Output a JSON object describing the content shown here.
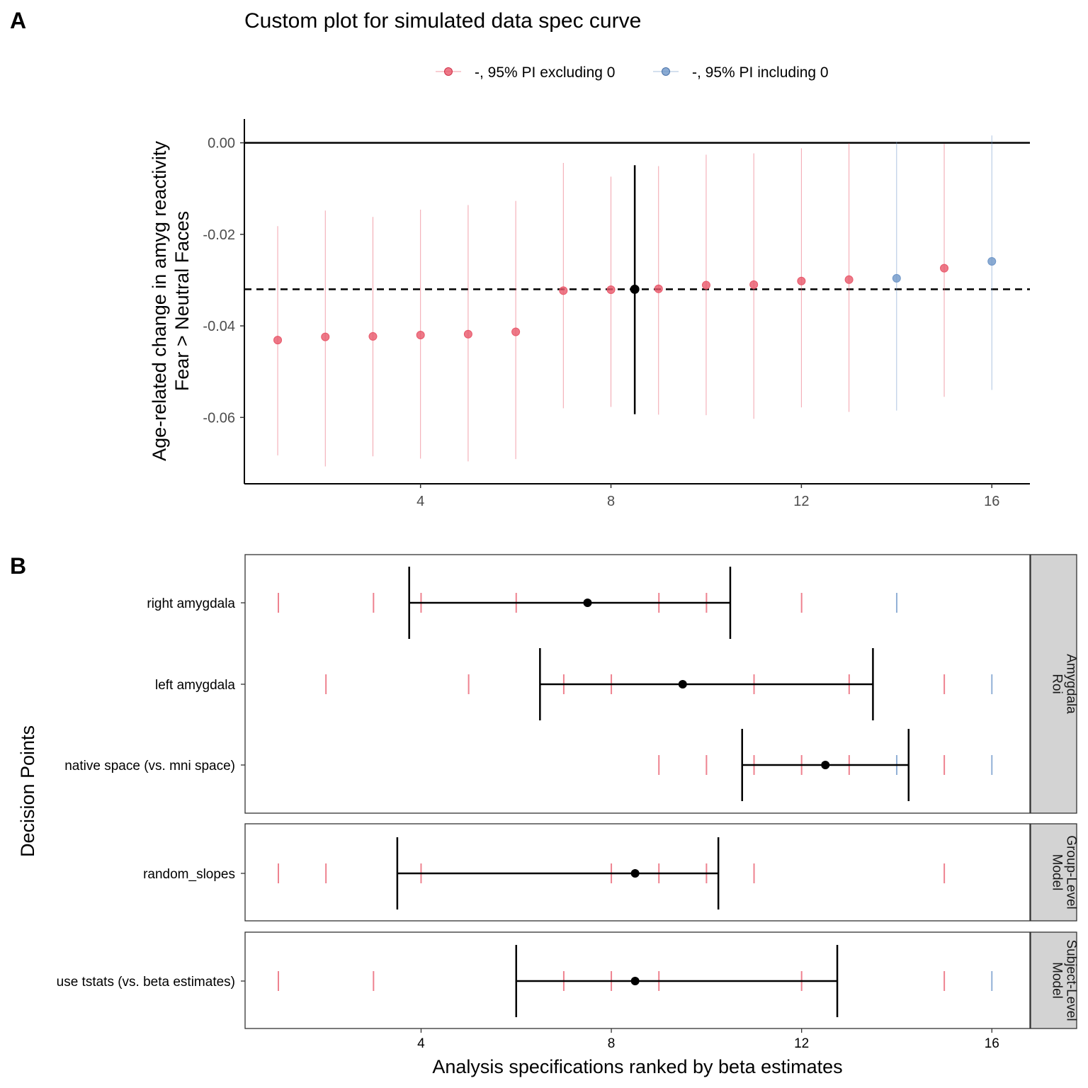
{
  "panel_a_letter": "A",
  "panel_b_letter": "B",
  "chart_data": [
    {
      "type": "scatter",
      "title": "Custom plot for simulated data spec curve",
      "ylabel_line1": "Age-related change in amyg reactivity",
      "ylabel_line2": "Fear > Neutral Faces",
      "xlabel": "",
      "xlim": [
        0.3,
        16.8
      ],
      "ylim": [
        -0.0745,
        0.0052
      ],
      "x_ticks": [
        4,
        8,
        12,
        16
      ],
      "y_ticks": [
        0.0,
        -0.02,
        -0.04,
        -0.06
      ],
      "y_tick_labels": [
        "0.00",
        "-0.02",
        "-0.04",
        "-0.06"
      ],
      "legend_position": "top",
      "legend": [
        {
          "label": "-, 95% PI excluding 0",
          "color": "#E8586A"
        },
        {
          "label": "-, 95% PI including 0",
          "color": "#6E96C8"
        }
      ],
      "reference_line_y": 0,
      "median_line_y": -0.032,
      "series": [
        {
          "name": "-, 95% PI excluding 0",
          "color": "#E8586A",
          "points": [
            {
              "x": 1,
              "y": -0.0431,
              "lo": -0.0683,
              "hi": -0.0182
            },
            {
              "x": 2,
              "y": -0.0424,
              "lo": -0.0707,
              "hi": -0.0148
            },
            {
              "x": 3,
              "y": -0.0423,
              "lo": -0.0685,
              "hi": -0.0162
            },
            {
              "x": 4,
              "y": -0.042,
              "lo": -0.069,
              "hi": -0.0146
            },
            {
              "x": 5,
              "y": -0.0418,
              "lo": -0.0696,
              "hi": -0.0136
            },
            {
              "x": 6,
              "y": -0.0413,
              "lo": -0.0691,
              "hi": -0.0127
            },
            {
              "x": 7,
              "y": -0.0323,
              "lo": -0.058,
              "hi": -0.0044
            },
            {
              "x": 8,
              "y": -0.0321,
              "lo": -0.0577,
              "hi": -0.0074
            },
            {
              "x": 9,
              "y": -0.0319,
              "lo": -0.0594,
              "hi": -0.0051
            },
            {
              "x": 10,
              "y": -0.0311,
              "lo": -0.0595,
              "hi": -0.0026
            },
            {
              "x": 11,
              "y": -0.031,
              "lo": -0.0603,
              "hi": -0.0023
            },
            {
              "x": 12,
              "y": -0.0302,
              "lo": -0.0578,
              "hi": -0.0012
            },
            {
              "x": 13,
              "y": -0.0299,
              "lo": -0.0588,
              "hi": -0.0001
            },
            {
              "x": 15,
              "y": -0.0274,
              "lo": -0.0555,
              "hi": -0.0002
            }
          ]
        },
        {
          "name": "-, 95% PI including 0",
          "color": "#6E96C8",
          "points": [
            {
              "x": 14,
              "y": -0.0296,
              "lo": -0.0585,
              "hi": 0.0002
            },
            {
              "x": 16,
              "y": -0.0259,
              "lo": -0.054,
              "hi": 0.0016
            }
          ]
        }
      ],
      "summary_point": {
        "x": 8.5,
        "y": -0.032,
        "lo": -0.0593,
        "hi": -0.0049,
        "color": "#000000"
      }
    },
    {
      "type": "scatter",
      "xlabel": "Analysis specifications ranked by beta estimates",
      "ylabel": "Decision Points",
      "xlim": [
        0.3,
        16.8
      ],
      "x_ticks": [
        4,
        8,
        12,
        16
      ],
      "facets": [
        {
          "label_line1": "Amygdala",
          "label_line2": "Roi",
          "rows": [
            {
              "label": "right amygdala",
              "red_ticks": [
                1,
                3,
                4,
                6,
                9,
                10,
                12
              ],
              "blue_ticks": [
                14
              ],
              "point": 7.5,
              "lo": 3.75,
              "hi": 10.5
            },
            {
              "label": "left amygdala",
              "red_ticks": [
                2,
                5,
                7,
                8,
                11,
                13,
                15
              ],
              "blue_ticks": [
                16
              ],
              "point": 9.5,
              "lo": 6.5,
              "hi": 13.5
            },
            {
              "label": "native space (vs. mni space)",
              "red_ticks": [
                9,
                10,
                11,
                12,
                13,
                15
              ],
              "blue_ticks": [
                14,
                16
              ],
              "point": 12.5,
              "lo": 10.75,
              "hi": 14.25
            }
          ]
        },
        {
          "label_line1": "Group-Level",
          "label_line2": "Model",
          "rows": [
            {
              "label": "random_slopes",
              "red_ticks": [
                1,
                2,
                4,
                8,
                9,
                10,
                11,
                15
              ],
              "blue_ticks": [],
              "point": 8.5,
              "lo": 3.5,
              "hi": 10.25
            }
          ]
        },
        {
          "label_line1": "Subject-Level",
          "label_line2": "Model",
          "rows": [
            {
              "label": "use tstats (vs. beta estimates)",
              "red_ticks": [
                1,
                3,
                7,
                8,
                9,
                12,
                15
              ],
              "blue_ticks": [
                16
              ],
              "point": 8.5,
              "lo": 6.0,
              "hi": 12.75
            }
          ]
        }
      ]
    }
  ]
}
